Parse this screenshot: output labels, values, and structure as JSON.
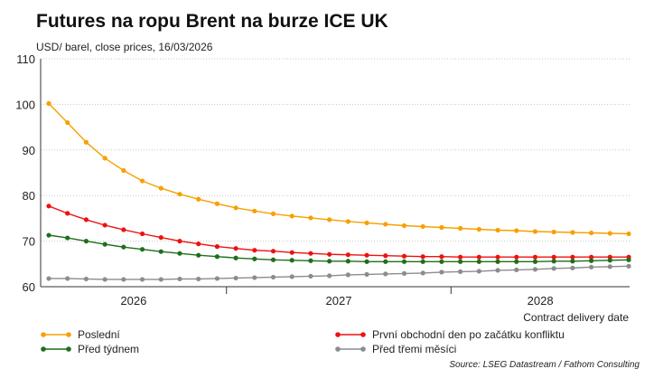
{
  "chart_data": {
    "type": "line",
    "title": "Futures na ropu Brent na burze ICE UK",
    "subtitle": "USD/ barel, close prices, 16/03/2026",
    "xlabel": "Contract delivery date",
    "ylabel": "",
    "ylim": [
      60,
      110
    ],
    "yticks": [
      60,
      70,
      80,
      90,
      100,
      110
    ],
    "x_year_labels": [
      "2026",
      "2027",
      "2028"
    ],
    "grid": true,
    "legend_position": "bottom",
    "source": "Source: LSEG Datastream / Fathom Consulting",
    "series": [
      {
        "name": "Poslední",
        "color": "#f7a000",
        "values": [
          100.2,
          96.0,
          91.7,
          88.2,
          85.5,
          83.2,
          81.6,
          80.3,
          79.2,
          78.2,
          77.3,
          76.6,
          76.0,
          75.5,
          75.1,
          74.7,
          74.3,
          74.0,
          73.7,
          73.4,
          73.2,
          73.0,
          72.8,
          72.6,
          72.4,
          72.3,
          72.1,
          72.0,
          71.9,
          71.8,
          71.7,
          71.6
        ]
      },
      {
        "name": "První obchodní den po začátku konfliktu",
        "color": "#ee1111",
        "values": [
          77.7,
          76.1,
          74.7,
          73.5,
          72.5,
          71.6,
          70.8,
          70.0,
          69.4,
          68.8,
          68.4,
          68.0,
          67.8,
          67.5,
          67.3,
          67.1,
          67.0,
          66.9,
          66.8,
          66.7,
          66.6,
          66.6,
          66.5,
          66.5,
          66.5,
          66.5,
          66.5,
          66.5,
          66.5,
          66.5,
          66.5,
          66.5
        ]
      },
      {
        "name": "Před týdnem",
        "color": "#1f6f1a",
        "values": [
          71.3,
          70.7,
          70.0,
          69.3,
          68.7,
          68.2,
          67.7,
          67.3,
          66.9,
          66.6,
          66.3,
          66.1,
          65.9,
          65.8,
          65.7,
          65.6,
          65.6,
          65.5,
          65.5,
          65.5,
          65.5,
          65.5,
          65.5,
          65.5,
          65.5,
          65.5,
          65.5,
          65.6,
          65.6,
          65.7,
          65.8,
          65.9
        ]
      },
      {
        "name": "Před třemi měsíci",
        "color": "#8c8c8c",
        "values": [
          61.8,
          61.8,
          61.7,
          61.6,
          61.6,
          61.6,
          61.6,
          61.7,
          61.7,
          61.8,
          61.9,
          62.0,
          62.1,
          62.2,
          62.3,
          62.4,
          62.6,
          62.7,
          62.8,
          62.9,
          63.0,
          63.2,
          63.3,
          63.4,
          63.6,
          63.7,
          63.8,
          64.0,
          64.1,
          64.3,
          64.4,
          64.5
        ]
      }
    ]
  }
}
